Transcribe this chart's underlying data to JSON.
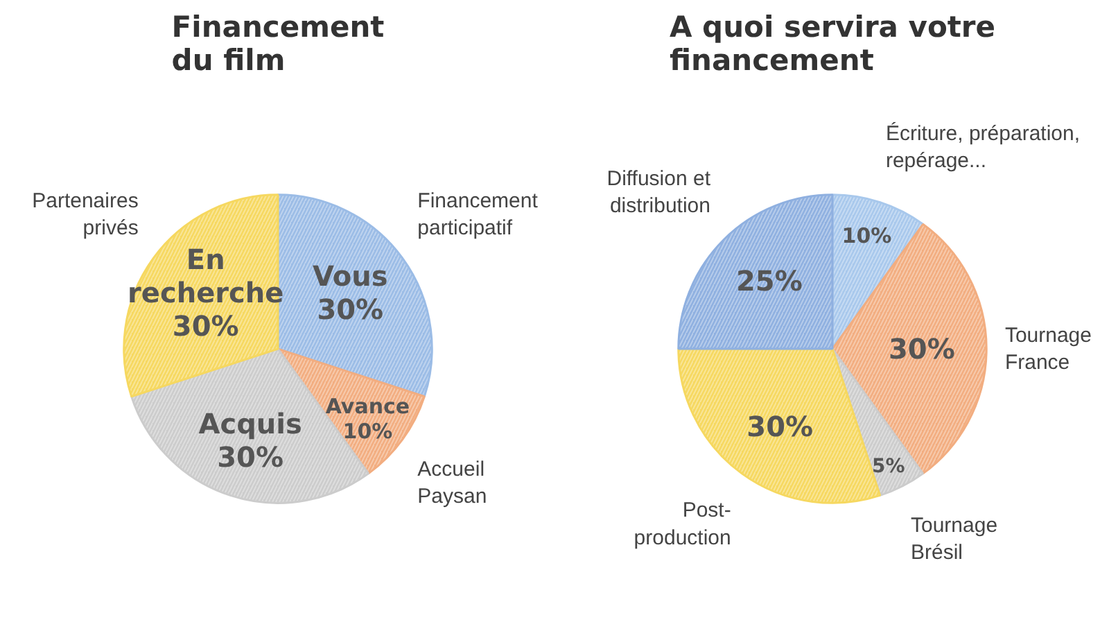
{
  "chart_data": [
    {
      "type": "pie",
      "title": "Financement\ndu film",
      "categories": [
        "Financement\nparticipatif",
        "Accueil\nPaysan",
        null,
        "Partenaires\nprivés"
      ],
      "values": [
        30,
        10,
        30,
        30
      ],
      "colors": [
        "#9bbce6",
        "#f2ad80",
        "#cccccc",
        "#f6d860"
      ],
      "value_labels": [
        "Vous\n30%",
        "Avance\n10%",
        "Acquis\n30%",
        "En\nrecherche\n30%"
      ]
    },
    {
      "type": "pie",
      "title": "A quoi servira votre\nfinancement",
      "categories": [
        "Écriture, préparation,\nrepérage...",
        "Tournage\nFrance",
        "Tournage\nBrésil",
        "Post-\nproduction",
        "Diffusion et\ndistribution"
      ],
      "values": [
        10,
        30,
        5,
        30,
        25
      ],
      "colors": [
        "#a8c8ec",
        "#f2ad80",
        "#cccccc",
        "#f6d860",
        "#8fb0e0"
      ],
      "value_labels": [
        "10%",
        "30%",
        "5%",
        "30%",
        "25%"
      ]
    }
  ]
}
